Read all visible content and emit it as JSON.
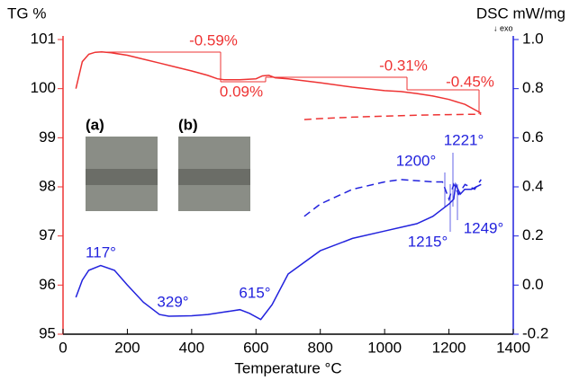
{
  "chart_data": {
    "type": "line",
    "x_label": "Temperature °C",
    "y_label": "TG  %",
    "y2_label": "DSC mW/mg",
    "y2_sublabel": "↓ exo",
    "xlim": [
      0,
      1400
    ],
    "xticks": [
      0,
      200,
      400,
      600,
      800,
      1000,
      1200,
      1400
    ],
    "ylim": [
      95,
      101
    ],
    "yticks": [
      95,
      96,
      97,
      98,
      99,
      100,
      101
    ],
    "y2lim": [
      -0.2,
      1.0
    ],
    "y2ticks": [
      -0.2,
      {
        "value": 0,
        "label": "0.0"
      },
      0.2,
      0.4,
      0.6,
      0.8,
      {
        "value": 1,
        "label": "1.0"
      }
    ],
    "y_color": "#ee3333",
    "y2_color": "#2222dd",
    "series": [
      {
        "color": "#ee3333",
        "dashed": false,
        "x": [
          40,
          60,
          80,
          100,
          120,
          150,
          200,
          250,
          300,
          350,
          400,
          450,
          480,
          500,
          550,
          600,
          620,
          640,
          660,
          700,
          800,
          900,
          1000,
          1050,
          1100,
          1150,
          1200,
          1250,
          1300
        ],
        "values": [
          100.0,
          100.55,
          100.7,
          100.74,
          100.75,
          100.73,
          100.68,
          100.6,
          100.52,
          100.44,
          100.36,
          100.27,
          100.2,
          100.18,
          100.18,
          100.2,
          100.26,
          100.27,
          100.22,
          100.2,
          100.12,
          100.03,
          99.96,
          99.94,
          99.9,
          99.85,
          99.78,
          99.68,
          99.5
        ]
      },
      {
        "color": "#ee3333",
        "dashed": true,
        "x": [
          750,
          800,
          900,
          1000,
          1100,
          1200,
          1300
        ],
        "values": [
          99.37,
          99.39,
          99.42,
          99.44,
          99.46,
          99.47,
          99.48
        ]
      },
      {
        "color": "#2222dd",
        "dashed": false,
        "axis": "y2",
        "x": [
          40,
          60,
          80,
          117,
          160,
          200,
          250,
          300,
          329,
          400,
          450,
          500,
          550,
          580,
          615,
          650,
          700,
          800,
          900,
          1000,
          1100,
          1150,
          1200,
          1215,
          1221,
          1235,
          1249,
          1270,
          1300
        ],
        "values": [
          -0.05,
          0.02,
          0.06,
          0.08,
          0.06,
          0.0,
          -0.07,
          -0.12,
          -0.127,
          -0.125,
          -0.12,
          -0.11,
          -0.1,
          -0.115,
          -0.14,
          -0.08,
          0.045,
          0.14,
          0.19,
          0.22,
          0.25,
          0.28,
          0.33,
          0.35,
          0.41,
          0.37,
          0.39,
          0.39,
          0.41
        ]
      },
      {
        "color": "#2222dd",
        "dashed": true,
        "axis": "y2",
        "x": [
          750,
          800,
          900,
          1000,
          1050,
          1150,
          1180,
          1200,
          1215,
          1230,
          1250,
          1280,
          1300
        ],
        "values": [
          0.28,
          0.33,
          0.39,
          0.42,
          0.43,
          0.42,
          0.42,
          0.35,
          0.41,
          0.37,
          0.41,
          0.39,
          0.43
        ]
      }
    ],
    "annotations": [
      "-0.59%",
      "0.09%",
      "-0.31%",
      "-0.45%",
      "117°",
      "329°",
      "615°",
      "1200°",
      "1221°",
      "1215°",
      "1249°"
    ],
    "insets": [
      "(a)",
      "(b)"
    ]
  }
}
